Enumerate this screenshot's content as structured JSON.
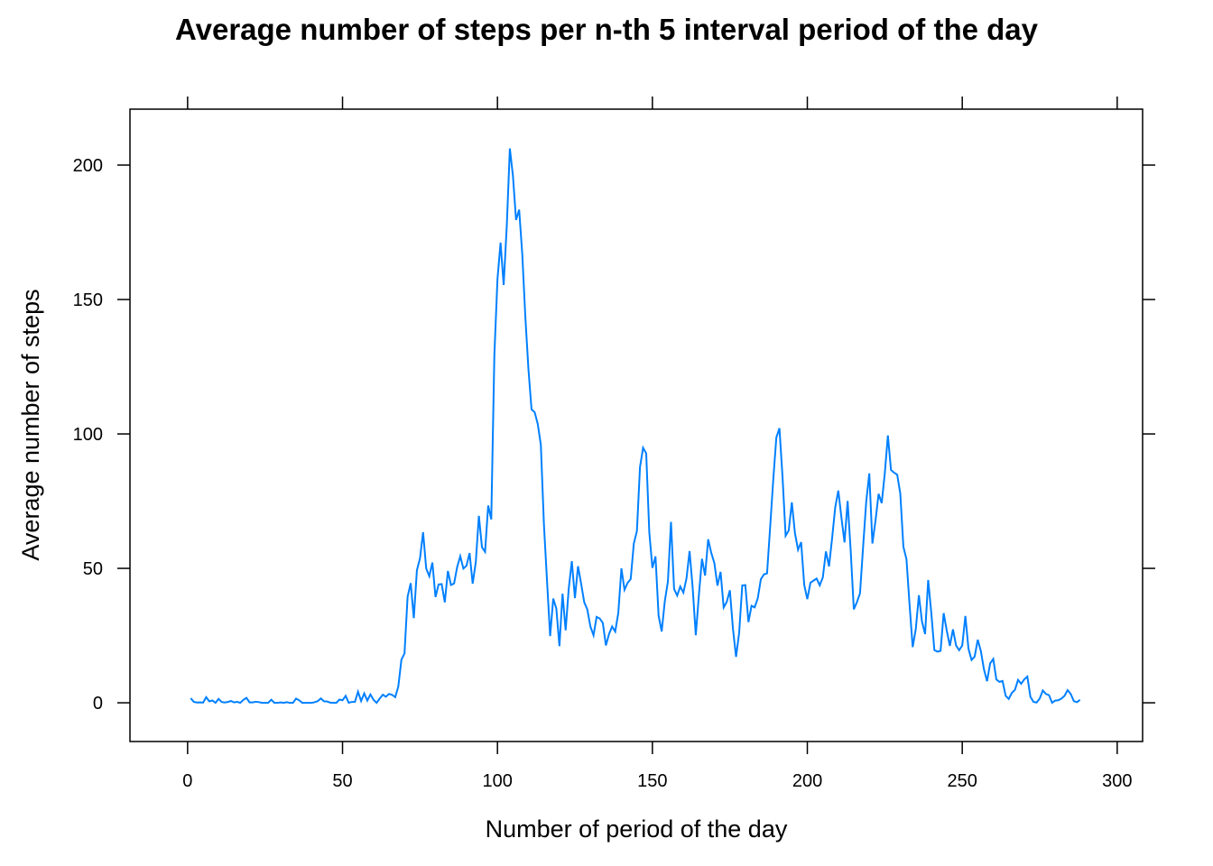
{
  "chart_data": {
    "type": "line",
    "title": "Average number of steps per n-th 5 interval period of the day",
    "x_label": "Number of period of the day",
    "y_label": "Average number of steps",
    "xlim": [
      -18.6,
      308.2
    ],
    "ylim": [
      -14.4,
      220.8
    ],
    "xticks": [
      0,
      50,
      100,
      150,
      200,
      250,
      300
    ],
    "yticks": [
      0,
      50,
      100,
      150,
      200
    ],
    "x": [
      1,
      2,
      3,
      4,
      5,
      6,
      7,
      8,
      9,
      10,
      11,
      12,
      13,
      14,
      15,
      16,
      17,
      18,
      19,
      20,
      21,
      22,
      23,
      24,
      25,
      26,
      27,
      28,
      29,
      30,
      31,
      32,
      33,
      34,
      35,
      36,
      37,
      38,
      39,
      40,
      41,
      42,
      43,
      44,
      45,
      46,
      47,
      48,
      49,
      50,
      51,
      52,
      53,
      54,
      55,
      56,
      57,
      58,
      59,
      60,
      61,
      62,
      63,
      64,
      65,
      66,
      67,
      68,
      69,
      70,
      71,
      72,
      73,
      74,
      75,
      76,
      77,
      78,
      79,
      80,
      81,
      82,
      83,
      84,
      85,
      86,
      87,
      88,
      89,
      90,
      91,
      92,
      93,
      94,
      95,
      96,
      97,
      98,
      99,
      100,
      101,
      102,
      103,
      104,
      105,
      106,
      107,
      108,
      109,
      110,
      111,
      112,
      113,
      114,
      115,
      116,
      117,
      118,
      119,
      120,
      121,
      122,
      123,
      124,
      125,
      126,
      127,
      128,
      129,
      130,
      131,
      132,
      133,
      134,
      135,
      136,
      137,
      138,
      139,
      140,
      141,
      142,
      143,
      144,
      145,
      146,
      147,
      148,
      149,
      150,
      151,
      152,
      153,
      154,
      155,
      156,
      157,
      158,
      159,
      160,
      161,
      162,
      163,
      164,
      165,
      166,
      167,
      168,
      169,
      170,
      171,
      172,
      173,
      174,
      175,
      176,
      177,
      178,
      179,
      180,
      181,
      182,
      183,
      184,
      185,
      186,
      187,
      188,
      189,
      190,
      191,
      192,
      193,
      194,
      195,
      196,
      197,
      198,
      199,
      200,
      201,
      202,
      203,
      204,
      205,
      206,
      207,
      208,
      209,
      210,
      211,
      212,
      213,
      214,
      215,
      216,
      217,
      218,
      219,
      220,
      221,
      222,
      223,
      224,
      225,
      226,
      227,
      228,
      229,
      230,
      231,
      232,
      233,
      234,
      235,
      236,
      237,
      238,
      239,
      240,
      241,
      242,
      243,
      244,
      245,
      246,
      247,
      248,
      249,
      250,
      251,
      252,
      253,
      254,
      255,
      256,
      257,
      258,
      259,
      260,
      261,
      262,
      263,
      264,
      265,
      266,
      267,
      268,
      269,
      270,
      271,
      272,
      273,
      274,
      275,
      276,
      277,
      278,
      279,
      280,
      281,
      282,
      283,
      284,
      285,
      286,
      287,
      288
    ],
    "series": [
      {
        "color": "#0080ff",
        "values": [
          1.72,
          0.34,
          0.13,
          0.15,
          0.08,
          2.09,
          0.53,
          0.87,
          0,
          1.47,
          0.3,
          0.13,
          0.32,
          0.68,
          0.15,
          0.34,
          0,
          1.11,
          1.83,
          0.17,
          0.17,
          0.38,
          0.26,
          0,
          0,
          0,
          1.13,
          0,
          0,
          0.13,
          0,
          0.23,
          0,
          0,
          1.55,
          0.94,
          0,
          0,
          0,
          0,
          0.21,
          0.62,
          1.62,
          0.58,
          0.49,
          0.08,
          0,
          0,
          1.19,
          0.94,
          2.57,
          0,
          0.34,
          0.36,
          4.11,
          0.66,
          3.49,
          0.83,
          3.11,
          1.11,
          0,
          1.57,
          3,
          2.25,
          3.32,
          2.96,
          2.09,
          6.06,
          16.02,
          18.34,
          39.45,
          44.49,
          31.49,
          49.26,
          53.77,
          63.45,
          49.96,
          47.08,
          52.15,
          39.34,
          44.02,
          44.17,
          37.36,
          49.04,
          43.81,
          44.38,
          50.51,
          54.51,
          49.92,
          50.98,
          55.68,
          44.32,
          52.26,
          69.55,
          57.85,
          56.15,
          73.38,
          68.21,
          129.43,
          157.53,
          171.15,
          155.4,
          177.3,
          206.17,
          195.92,
          179.57,
          183.4,
          167.02,
          143.45,
          124.04,
          109.11,
          108.11,
          103.72,
          95.96,
          66.21,
          45.23,
          24.79,
          38.75,
          34.98,
          21.06,
          40.57,
          26.98,
          42.42,
          52.66,
          38.92,
          50.79,
          44.28,
          37.42,
          34.7,
          28.34,
          25.09,
          31.94,
          31.36,
          29.68,
          21.32,
          25.55,
          28.38,
          26.47,
          33.43,
          49.98,
          42.04,
          44.6,
          46.04,
          59.19,
          63.87,
          87.7,
          94.85,
          92.77,
          63.4,
          50.17,
          54.47,
          32.42,
          26.53,
          37.74,
          45.06,
          67.28,
          42.34,
          39.89,
          43.26,
          40.98,
          46.25,
          56.43,
          42.75,
          25.13,
          39.96,
          53.55,
          47.32,
          60.81,
          55.75,
          51.96,
          43.58,
          48.7,
          35.47,
          37.55,
          41.85,
          27.51,
          17.11,
          26.08,
          43.62,
          43.77,
          30.02,
          36.08,
          35.49,
          38.85,
          45.96,
          47.75,
          48.13,
          65.32,
          82.91,
          98.66,
          102.11,
          83.96,
          62.13,
          64.13,
          74.55,
          63.17,
          56.91,
          59.77,
          43.87,
          38.57,
          44.66,
          45.45,
          46.21,
          43.68,
          46.62,
          56.3,
          50.72,
          61.23,
          72.72,
          78.94,
          68.94,
          59.66,
          75.09,
          56.51,
          34.77,
          37.45,
          40.68,
          58.02,
          74.7,
          85.32,
          59.26,
          67.77,
          77.7,
          74.25,
          85.34,
          99.45,
          86.58,
          85.6,
          84.87,
          77.83,
          58.04,
          53.36,
          36.32,
          20.72,
          27.4,
          40.02,
          30.21,
          25.55,
          45.66,
          33.53,
          19.62,
          19.02,
          19.34,
          33.34,
          26.81,
          21.17,
          27.3,
          21.34,
          19.55,
          21.32,
          32.3,
          20.15,
          15.94,
          17.23,
          23.45,
          19.25,
          12.45,
          8.02,
          14.66,
          16.3,
          8.68,
          7.79,
          8.13,
          2.62,
          1.45,
          3.68,
          4.81,
          8.51,
          7.08,
          8.7,
          9.75,
          2.21,
          0.32,
          0.11,
          1.6,
          4.6,
          3.3,
          2.85,
          0,
          0.83,
          0.96,
          1.58,
          2.6,
          4.7,
          3.3,
          0.64,
          0.23,
          1.08
        ]
      }
    ]
  }
}
